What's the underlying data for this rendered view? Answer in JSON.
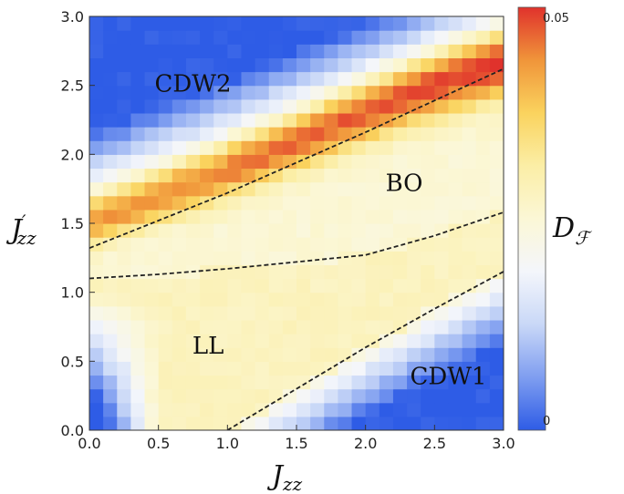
{
  "chart_data": {
    "type": "heatmap",
    "title": "",
    "xlabel": {
      "main": "J",
      "sub": "zz"
    },
    "ylabel": {
      "main": "J",
      "prime": "′",
      "sub": "zz"
    },
    "colorbar_label": {
      "main": "D",
      "sub": "ℱ"
    },
    "xlim": [
      0,
      3
    ],
    "ylim": [
      0,
      3
    ],
    "x_ticks": [
      "0.0",
      "0.5",
      "1.0",
      "1.5",
      "2.0",
      "2.5",
      "3.0"
    ],
    "y_ticks": [
      "0.0",
      "0.5",
      "1.0",
      "1.5",
      "2.0",
      "2.5",
      "3.0"
    ],
    "colorbar_range": [
      0,
      0.05
    ],
    "colorbar_ticks": [
      "0",
      "0.05"
    ],
    "grid": false,
    "colorscale": [
      "#2e5ce6",
      "#7f9ef0",
      "#c9d8f7",
      "#f4f6fb",
      "#fbf7d6",
      "#fbeea6",
      "#fad35e",
      "#f0953a",
      "#e0322c"
    ],
    "regions": [
      {
        "label": "CDW2",
        "x": 0.75,
        "y": 2.5
      },
      {
        "label": "BO",
        "x": 2.28,
        "y": 1.78
      },
      {
        "label": "LL",
        "x": 0.86,
        "y": 0.6
      },
      {
        "label": "CDW1",
        "x": 2.6,
        "y": 0.38
      }
    ],
    "phase_boundaries": [
      {
        "name": "upper",
        "points": [
          [
            0,
            1.32
          ],
          [
            0.5,
            1.52
          ],
          [
            1.0,
            1.72
          ],
          [
            1.5,
            1.94
          ],
          [
            2.0,
            2.16
          ],
          [
            2.5,
            2.39
          ],
          [
            3.0,
            2.62
          ]
        ]
      },
      {
        "name": "middle",
        "points": [
          [
            0,
            1.1
          ],
          [
            0.5,
            1.13
          ],
          [
            1.0,
            1.17
          ],
          [
            1.5,
            1.22
          ],
          [
            2.0,
            1.27
          ],
          [
            2.5,
            1.41
          ],
          [
            3.0,
            1.58
          ]
        ]
      },
      {
        "name": "lower",
        "points": [
          [
            1.0,
            0.0
          ],
          [
            1.5,
            0.3
          ],
          [
            2.0,
            0.6
          ],
          [
            2.5,
            0.88
          ],
          [
            3.0,
            1.15
          ]
        ]
      }
    ],
    "ridge_line": [
      [
        0,
        1.5
      ],
      [
        0.5,
        1.69
      ],
      [
        1.0,
        1.88
      ],
      [
        1.5,
        2.09
      ],
      [
        2.0,
        2.3
      ],
      [
        2.5,
        2.5
      ],
      [
        3.0,
        2.66
      ]
    ]
  }
}
